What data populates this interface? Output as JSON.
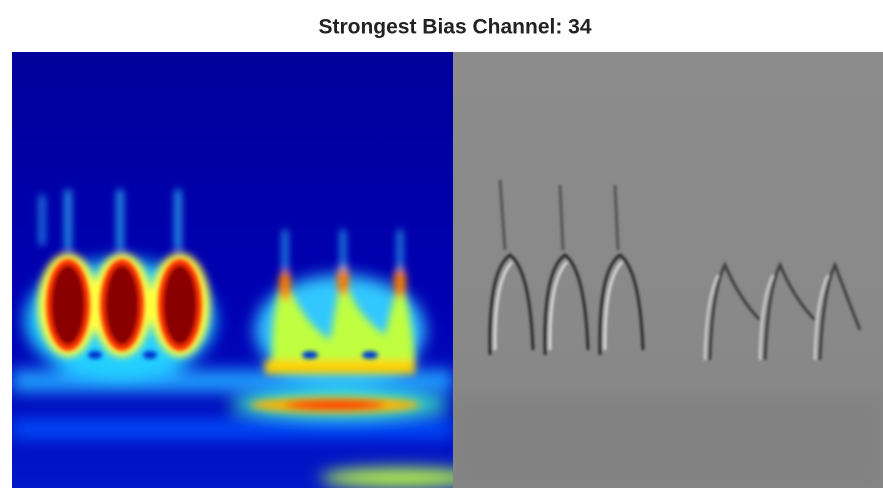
{
  "title": "Strongest Bias Channel: 34"
}
